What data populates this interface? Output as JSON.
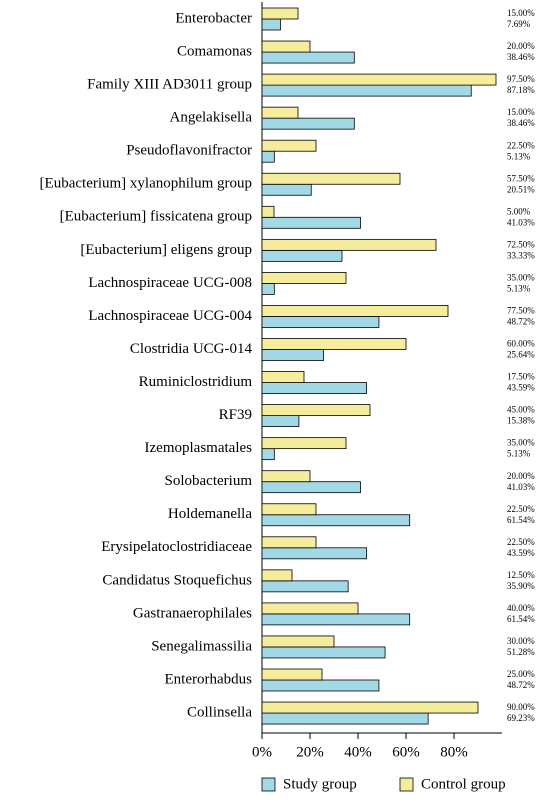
{
  "chart_data": {
    "type": "bar",
    "orientation": "horizontal",
    "categories": [
      "Enterobacter",
      "Comamonas",
      "Family XIII AD3011 group",
      "Angelakisella",
      "Pseudoflavonifractor",
      "[Eubacterium] xylanophilum group",
      "[Eubacterium] fissicatena group",
      "[Eubacterium] eligens group",
      "Lachnospiraceae UCG-008",
      "Lachnospiraceae UCG-004",
      "Clostridia UCG-014",
      "Ruminiclostridium",
      "RF39",
      "Izemoplasmatales",
      "Solobacterium",
      "Holdemanella",
      "Erysipelatoclostridiaceae",
      "Candidatus Stoquefichus",
      "Gastranaerophilales",
      "Senegalimassilia",
      "Enterorhabdus",
      "Collinsella"
    ],
    "series": [
      {
        "name": "Study group",
        "color": "#a3d9e6",
        "values": [
          7.69,
          38.46,
          87.18,
          38.46,
          5.13,
          20.51,
          41.03,
          33.33,
          5.13,
          48.72,
          25.64,
          43.59,
          15.38,
          5.13,
          41.03,
          61.54,
          43.59,
          35.9,
          61.54,
          51.28,
          48.72,
          69.23
        ],
        "value_labels": [
          "7.69%",
          "38.46%",
          "87.18%",
          "38.46%",
          "5.13%",
          "20.51%",
          "41.03%",
          "33.33%",
          "5.13%",
          "48.72%",
          "25.64%",
          "43.59%",
          "15.38%",
          "5.13%",
          "41.03%",
          "61.54%",
          "43.59%",
          "35.90%",
          "61.54%",
          "51.28%",
          "48.72%",
          "69.23%"
        ]
      },
      {
        "name": "Control group",
        "color": "#f5ec9c",
        "values": [
          15,
          20,
          97.5,
          15,
          22.5,
          57.5,
          5,
          72.5,
          35,
          77.5,
          60,
          17.5,
          45,
          35,
          20,
          22.5,
          22.5,
          12.5,
          40,
          30,
          25,
          90
        ],
        "value_labels": [
          "15.00%",
          "20.00%",
          "97.50%",
          "15.00%",
          "22.50%",
          "57.50%",
          "5.00%",
          "72.50%",
          "35.00%",
          "77.50%",
          "60.00%",
          "17.50%",
          "45.00%",
          "35.00%",
          "20.00%",
          "22.50%",
          "22.50%",
          "12.50%",
          "40.00%",
          "30.00%",
          "25.00%",
          "90.00%"
        ]
      }
    ],
    "xlim": [
      0,
      100
    ],
    "xticks": [
      {
        "value": 0,
        "label": "0%"
      },
      {
        "value": 20,
        "label": "20%"
      },
      {
        "value": 40,
        "label": "40%"
      },
      {
        "value": 60,
        "label": "60%"
      },
      {
        "value": 80,
        "label": "80%"
      }
    ],
    "legend": "bottom"
  }
}
